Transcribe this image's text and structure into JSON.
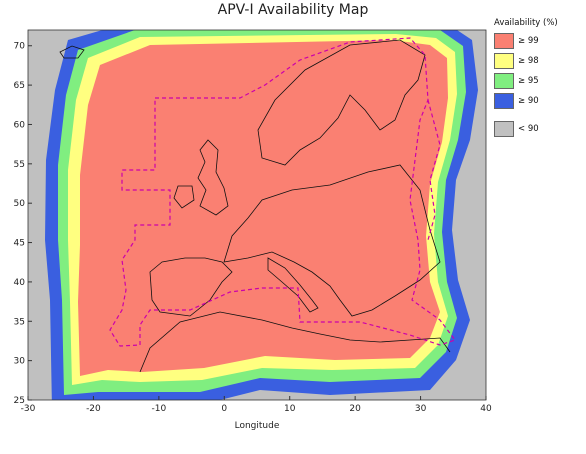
{
  "title": "APV-I Availability Map",
  "map": {
    "xlabel": "Longitude",
    "ylabel": "",
    "xlim": [
      -30,
      40
    ],
    "ylim": [
      25,
      72
    ],
    "xticks": [
      -30,
      -20,
      -10,
      0,
      10,
      20,
      30,
      40
    ],
    "yticks": [
      25,
      30,
      35,
      40,
      45,
      50,
      55,
      60,
      65,
      70
    ],
    "background_color": "#c0c0c0",
    "coastline_color": "#111111",
    "region_boundary_color": "#cc00aa"
  },
  "legend": {
    "title": "Availability (%)",
    "items": [
      {
        "label": "≥ 99",
        "color": "#fa8072"
      },
      {
        "label": "≥ 98",
        "color": "#ffff80"
      },
      {
        "label": "≥ 95",
        "color": "#80ee80"
      },
      {
        "label": "≥ 90",
        "color": "#3a5fe0"
      },
      {
        "label": "< 90",
        "color": "#c0c0c0"
      }
    ]
  }
}
